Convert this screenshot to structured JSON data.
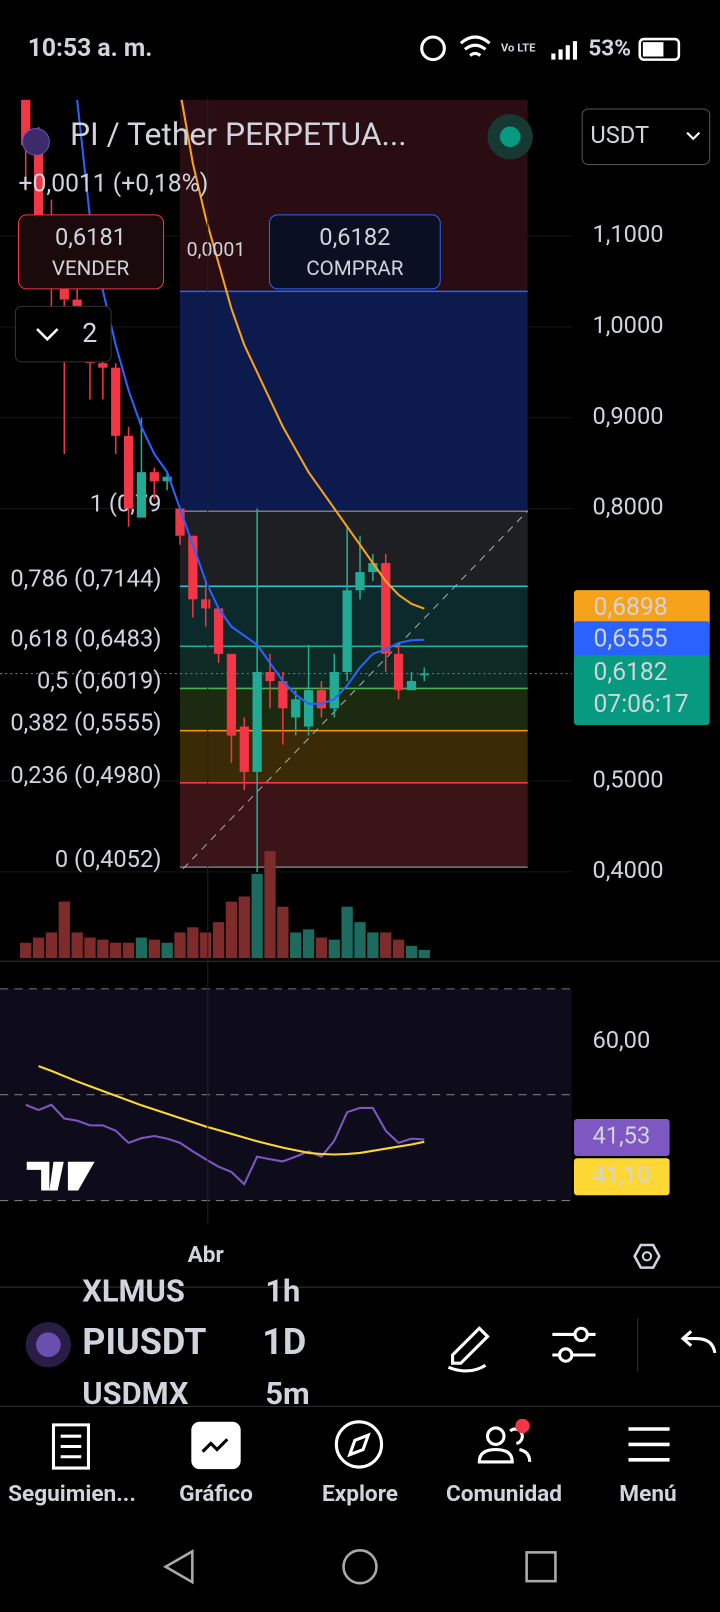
{
  "status_bar": {
    "time": "10:53 a. m.",
    "network": "Vo LTE",
    "battery": "53%"
  },
  "header": {
    "symbol": "PI / Tether PERPETUA...",
    "change": "+0,0011 (+0,18%)",
    "sell_price": "0,6181",
    "sell": "VENDER",
    "spread": "0,0001",
    "buy_price": "0,6182",
    "buy": "COMPRAR",
    "currency": "USDT",
    "indicator_count": "2"
  },
  "chart_data": {
    "type": "candlestick",
    "x_label": "Abr",
    "ylim": [
      0.305,
      1.25
    ],
    "yticks": [
      {
        "value": 1.1,
        "label": "1,1000"
      },
      {
        "value": 1.0,
        "label": "1,0000"
      },
      {
        "value": 0.9,
        "label": "0,9000"
      },
      {
        "value": 0.8,
        "label": "0,8000"
      },
      {
        "value": 0.5,
        "label": "0,5000"
      },
      {
        "value": 0.4,
        "label": "0,4000"
      }
    ],
    "open": [
      1.25,
      1.2,
      1.12,
      1.06,
      1.03,
      1.0,
      0.96,
      0.955,
      0.88,
      0.79,
      0.84,
      0.83,
      0.8,
      0.77,
      0.7,
      0.69,
      0.64,
      0.56,
      0.51,
      0.62,
      0.61,
      0.57,
      0.56,
      0.6,
      0.58,
      0.62,
      0.71,
      0.73,
      0.74,
      0.64,
      0.6,
      0.618
    ],
    "high": [
      1.26,
      1.22,
      1.14,
      1.08,
      1.05,
      1.01,
      0.97,
      0.96,
      0.89,
      0.9,
      0.845,
      0.84,
      0.8,
      0.77,
      0.72,
      0.69,
      0.64,
      0.57,
      0.8,
      0.64,
      0.62,
      0.6,
      0.65,
      0.61,
      0.64,
      0.78,
      0.77,
      0.75,
      0.75,
      0.65,
      0.62,
      0.625
    ],
    "low": [
      1.15,
      1.08,
      1.02,
      0.86,
      0.97,
      0.92,
      0.92,
      0.86,
      0.78,
      0.79,
      0.81,
      0.82,
      0.76,
      0.68,
      0.67,
      0.63,
      0.52,
      0.49,
      0.4,
      0.58,
      0.54,
      0.55,
      0.55,
      0.57,
      0.57,
      0.61,
      0.7,
      0.72,
      0.62,
      0.59,
      0.6,
      0.61
    ],
    "close": [
      1.2,
      1.12,
      1.06,
      1.03,
      1.0,
      0.96,
      0.955,
      0.88,
      0.8,
      0.84,
      0.83,
      0.835,
      0.77,
      0.7,
      0.69,
      0.64,
      0.55,
      0.51,
      0.62,
      0.61,
      0.58,
      0.59,
      0.6,
      0.58,
      0.62,
      0.71,
      0.73,
      0.74,
      0.64,
      0.6,
      0.61,
      0.6182
    ],
    "volume": [
      15,
      20,
      25,
      55,
      25,
      20,
      18,
      15,
      15,
      20,
      18,
      15,
      25,
      30,
      25,
      35,
      55,
      60,
      82,
      104,
      50,
      25,
      28,
      20,
      18,
      50,
      35,
      25,
      25,
      18,
      12,
      8
    ],
    "up_color": "#22ab94",
    "down_color": "#f23645",
    "up_volume_color": "#1d6a5e",
    "down_volume_color": "#7e2b2b",
    "moving_averages": [
      {
        "color": "#f7a21b",
        "values": [
          null,
          null,
          null,
          null,
          null,
          null,
          null,
          null,
          null,
          null,
          null,
          null,
          1.26,
          1.18,
          1.12,
          1.07,
          1.02,
          0.98,
          0.95,
          0.92,
          0.89,
          0.865,
          0.84,
          0.82,
          0.8,
          0.78,
          0.76,
          0.74,
          0.72,
          0.705,
          0.695,
          0.6898
        ]
      },
      {
        "color": "#2962ff",
        "values": [
          null,
          null,
          null,
          null,
          1.25,
          1.12,
          1.04,
          0.98,
          0.93,
          0.89,
          0.86,
          0.84,
          0.8,
          0.76,
          0.72,
          0.69,
          0.67,
          0.66,
          0.65,
          0.63,
          0.61,
          0.595,
          0.585,
          0.585,
          0.59,
          0.605,
          0.625,
          0.64,
          0.645,
          0.652,
          0.655,
          0.6555
        ]
      }
    ],
    "fib_levels": [
      {
        "value": 1.25,
        "fill": "#2a0d12"
      },
      {
        "value": 1.039,
        "color": "#2962ff",
        "fill": "#0c1a4e"
      },
      {
        "value": 0.797,
        "label": "1 (0,79",
        "color": "#787b86",
        "fill": "#1e1f22"
      },
      {
        "value": 0.7144,
        "label": "0,786 (0,7144)",
        "color": "#26c6da",
        "fill": "#0c2a2c"
      },
      {
        "value": 0.6483,
        "label": "0,618 (0,6483)",
        "color": "#22ab94",
        "fill": "#0d2a24"
      },
      {
        "value": 0.6019,
        "label": "0,5 (0,6019)",
        "color": "#4caf50",
        "fill": "#1c2a10"
      },
      {
        "value": 0.5555,
        "label": "0,382 (0,5555)",
        "color": "#ff9800",
        "fill": "#3a2a06"
      },
      {
        "value": 0.498,
        "label": "0,236 (0,4980)",
        "color": "#f23645",
        "fill": "#3a1416"
      },
      {
        "value": 0.4052,
        "label": "0 (0,4052)",
        "color": "#787b86"
      }
    ],
    "price_tags": [
      {
        "value": 0.6898,
        "label": "0,6898",
        "color": "#f7a21b"
      },
      {
        "value": 0.6555,
        "label": "0,6555",
        "color": "#2962ff"
      },
      {
        "value": 0.6182,
        "label": "0,6182",
        "color": "#089981",
        "countdown": "07:06:17"
      }
    ]
  },
  "rsi": {
    "type": "line",
    "ylim": [
      28.6,
      72.3
    ],
    "levels": [
      70,
      50,
      30
    ],
    "yticks": [
      {
        "value": 60,
        "label": "60,00"
      }
    ],
    "series": [
      {
        "color": "#7e57c2",
        "values": [
          48.1,
          47.1,
          48.1,
          45.5,
          45.1,
          44.2,
          44.2,
          43.2,
          40.9,
          41.8,
          42.2,
          41.7,
          40.9,
          39.3,
          37.8,
          36.4,
          35.4,
          33.1,
          38.3,
          37.8,
          37.4,
          38.3,
          39.3,
          38.3,
          41.3,
          46.7,
          47.5,
          47.5,
          43.2,
          40.9,
          41.7,
          41.53
        ],
        "tag": {
          "value": 41.53,
          "label": "41,53"
        }
      },
      {
        "color": "#fdd835",
        "values": [
          null,
          55.4,
          54.5,
          53.5,
          52.5,
          51.6,
          50.7,
          49.8,
          48.9,
          48.0,
          47.2,
          46.4,
          45.6,
          44.8,
          44.0,
          43.3,
          42.6,
          41.9,
          41.2,
          40.6,
          40.0,
          39.5,
          39.0,
          38.8,
          38.7,
          38.8,
          39.0,
          39.4,
          39.8,
          40.2,
          40.6,
          41.1
        ],
        "tag": {
          "value": 41.1,
          "label": "41,10"
        }
      }
    ]
  },
  "bottom_bar": {
    "prev_symbol": "XLMUS",
    "prev_interval": "1h",
    "symbol": "PIUSDT",
    "interval": "1D",
    "next_symbol": "USDMX",
    "next_interval": "5m"
  },
  "nav": [
    "Seguimien...",
    "Gráfico",
    "Explore",
    "Comunidad",
    "Menú"
  ]
}
